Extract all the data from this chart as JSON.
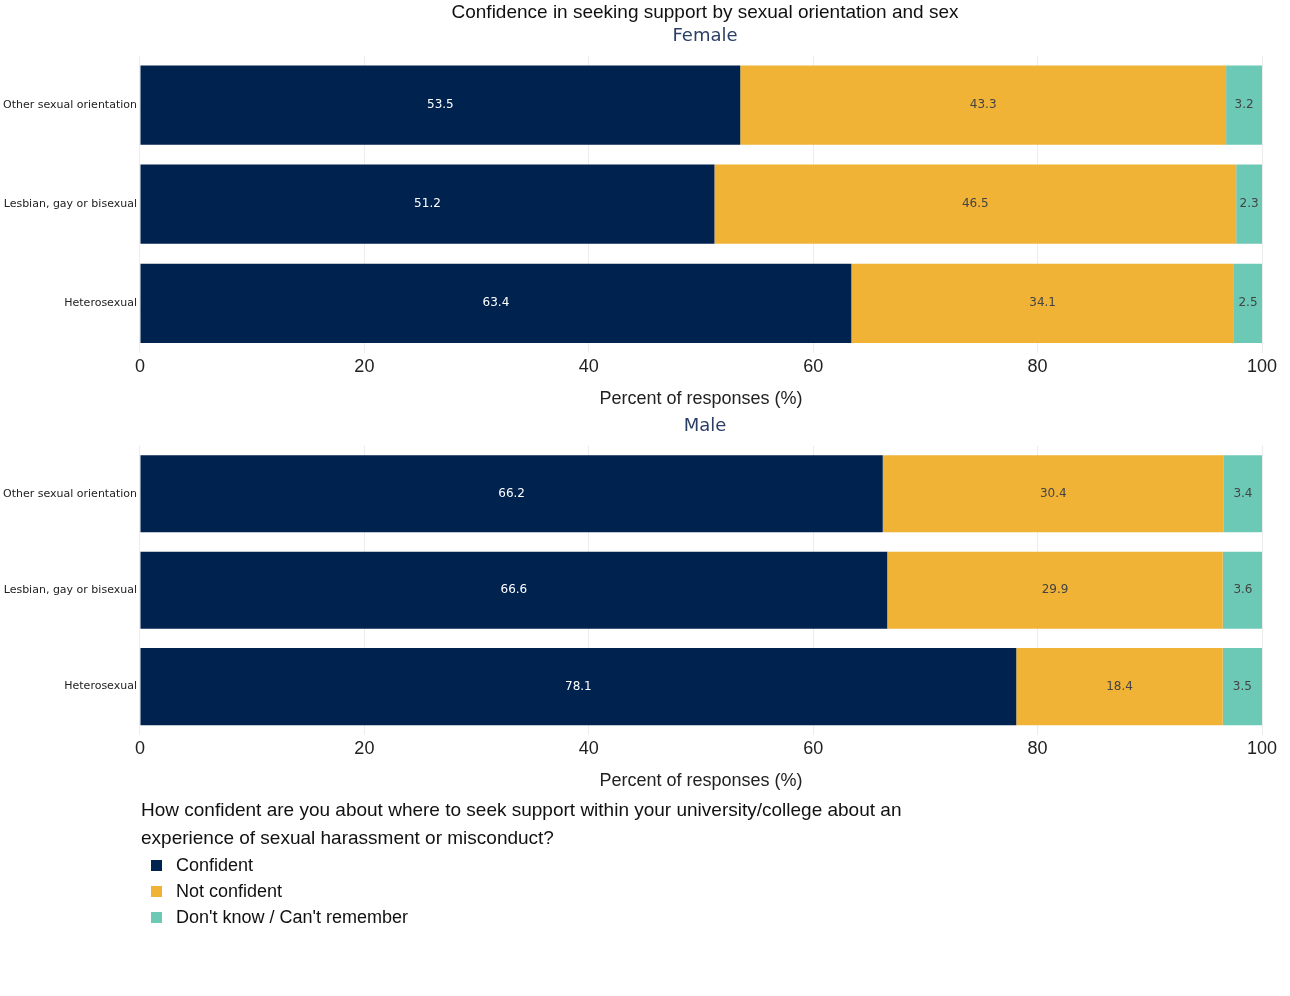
{
  "chart_data": [
    {
      "type": "bar",
      "orientation": "horizontal",
      "stacked": true,
      "title": "Confidence in seeking support by sexual orientation and sex",
      "subtitle": "Female",
      "xlabel": "Percent of responses (%)",
      "categories": [
        "Other sexual orientation",
        "Lesbian, gay or bisexual",
        "Heterosexual"
      ],
      "series": [
        {
          "color": "#00224e",
          "values": [
            53.5,
            51.2,
            63.4
          ]
        },
        {
          "color": "#f0b336",
          "values": [
            43.3,
            46.5,
            34.1
          ]
        },
        {
          "color": "#6cc9b6",
          "values": [
            3.2,
            2.3,
            2.5
          ]
        }
      ],
      "xlim": [
        0,
        100
      ],
      "xticks": [
        0,
        20,
        40,
        60,
        80,
        100
      ],
      "grid": "x",
      "data_labels": true
    },
    {
      "type": "bar",
      "orientation": "horizontal",
      "stacked": true,
      "subtitle": "Male",
      "xlabel": "Percent of responses (%)",
      "categories": [
        "Other sexual orientation",
        "Lesbian, gay or bisexual",
        "Heterosexual"
      ],
      "series": [
        {
          "name": "Confident",
          "color": "#00224e",
          "values": [
            66.2,
            66.6,
            78.1
          ]
        },
        {
          "name": "Not confident",
          "color": "#f0b336",
          "values": [
            30.4,
            29.9,
            18.4
          ]
        },
        {
          "name": "Don't know / Can't remember",
          "color": "#6cc9b6",
          "values": [
            3.4,
            3.6,
            3.5
          ]
        }
      ],
      "xlim": [
        0,
        100
      ],
      "xticks": [
        0,
        20,
        40,
        60,
        80,
        100
      ],
      "grid": "x",
      "data_labels": true,
      "legend_title": "How confident are you about where to seek support within your university/college about an experience of sexual harassment or misconduct?",
      "legend": "bottom"
    }
  ]
}
